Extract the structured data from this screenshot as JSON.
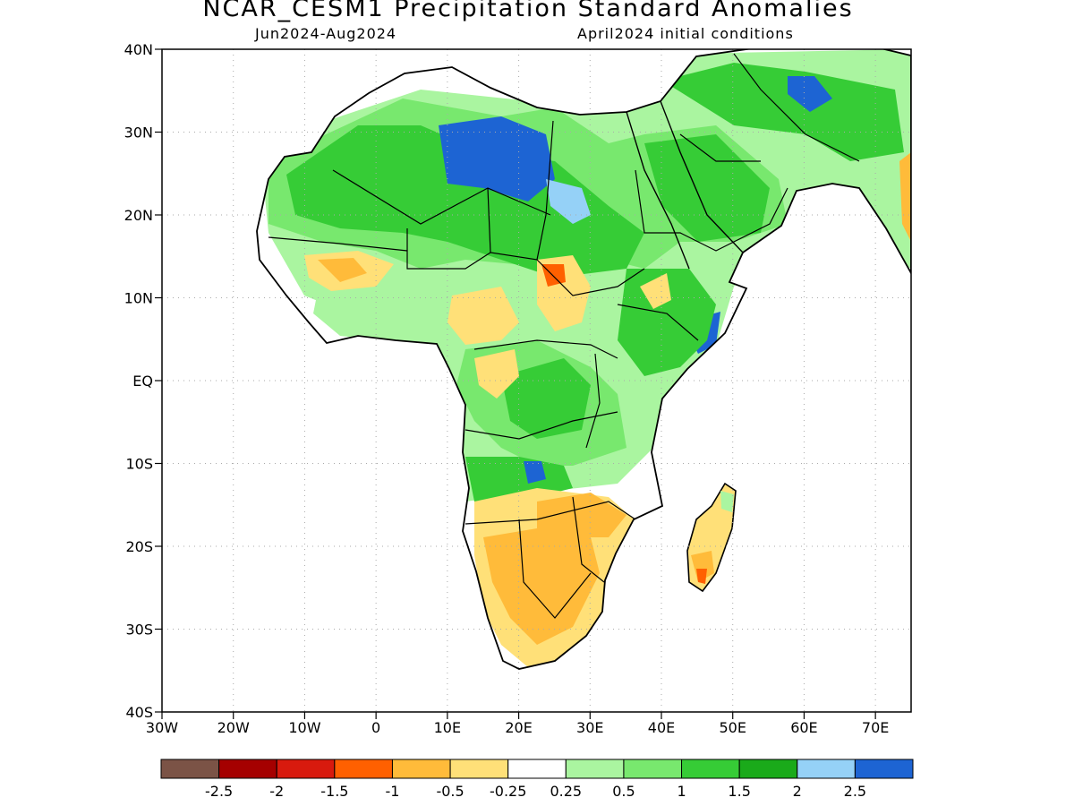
{
  "header": {
    "title": "NCAR_CESM1 Precipitation Standard Anomalies",
    "period": "Jun2024-Aug2024",
    "init": "April2024 initial conditions"
  },
  "map": {
    "extent": {
      "lon": [
        -30,
        75
      ],
      "lat": [
        -40,
        40
      ]
    },
    "lat_labels": [
      "40N",
      "30N",
      "20N",
      "10N",
      "EQ",
      "10S",
      "20S",
      "30S",
      "40S"
    ],
    "lon_labels": [
      "30W",
      "20W",
      "10W",
      "0",
      "10E",
      "20E",
      "30E",
      "40E",
      "50E",
      "60E",
      "70E"
    ],
    "grid": "dotted"
  },
  "colorbar": {
    "colors": [
      "#7b5346",
      "#a50000",
      "#d81a0e",
      "#ff6000",
      "#ffbb3a",
      "#ffe078",
      "#ffffff",
      "#aaf5a0",
      "#78e86e",
      "#36cc36",
      "#1aaa1a",
      "#95d1f7",
      "#1d64d3"
    ],
    "labels": [
      "-2.5",
      "-2",
      "-1.5",
      "-1",
      "-0.5",
      "-0.25",
      "0.25",
      "0.5",
      "1",
      "1.5",
      "2",
      "2.5"
    ]
  }
}
